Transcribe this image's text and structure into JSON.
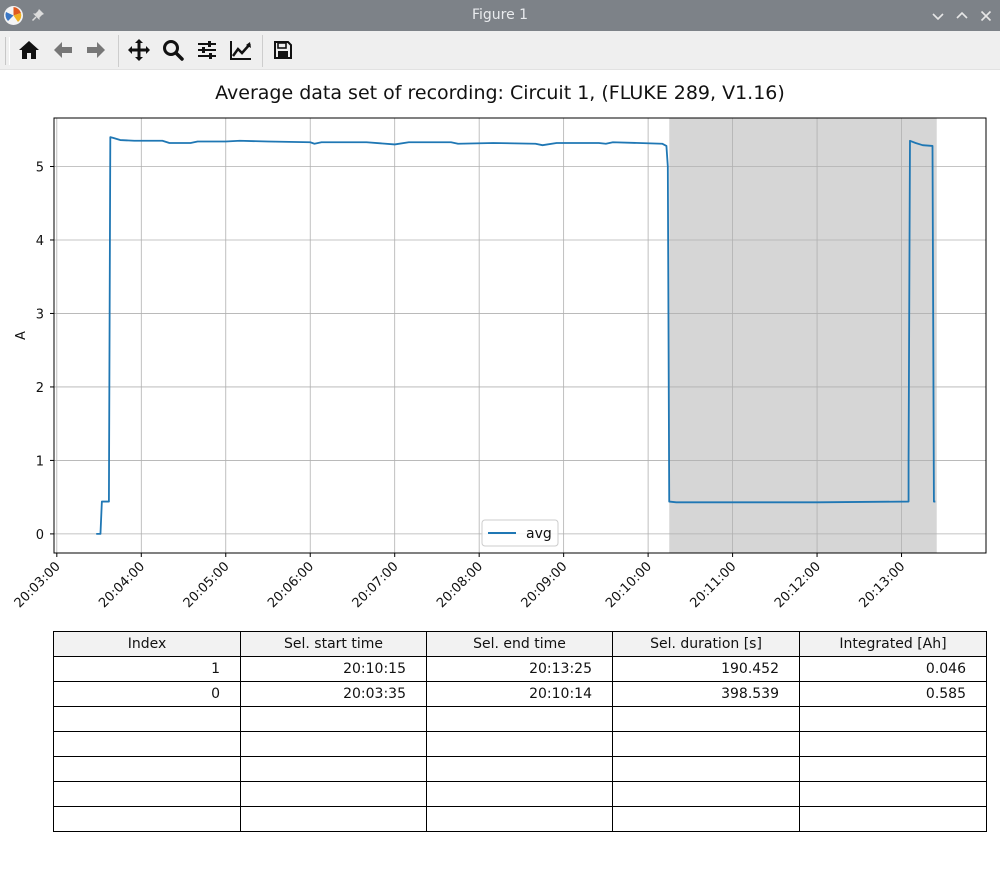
{
  "window": {
    "title": "Figure 1",
    "minimize_icon": "chevron-down-icon",
    "maximize_icon": "chevron-up-icon",
    "close_icon": "close-icon"
  },
  "toolbar": {
    "buttons": [
      "home-icon",
      "back-arrow-icon",
      "forward-arrow-icon",
      "pan-icon",
      "zoom-icon",
      "subplots-config-icon",
      "edit-axes-icon",
      "save-icon"
    ]
  },
  "chart_data": {
    "type": "line",
    "title": "Average data set of recording: Circuit 1, (FLUKE 289,  V1.16)",
    "xlabel": "",
    "ylabel": "A",
    "x_ticks": [
      "20:03:00",
      "20:04:00",
      "20:05:00",
      "20:06:00",
      "20:07:00",
      "20:08:00",
      "20:09:00",
      "20:10:00",
      "20:11:00",
      "20:12:00",
      "20:13:00"
    ],
    "y_ticks": [
      "0",
      "1",
      "2",
      "3",
      "4",
      "5"
    ],
    "xlim": [
      "20:02:58",
      "20:14:00"
    ],
    "ylim": [
      -0.26,
      5.66
    ],
    "grid": true,
    "legend": "bottom-center",
    "highlight_region": [
      "20:10:15",
      "20:13:25"
    ],
    "series": [
      {
        "name": "avg",
        "color": "#1f77b4",
        "points": [
          [
            "20:03:28",
            0.0
          ],
          [
            "20:03:31",
            0.0
          ],
          [
            "20:03:32",
            0.44
          ],
          [
            "20:03:37",
            0.44
          ],
          [
            "20:03:38",
            5.4
          ],
          [
            "20:03:40",
            5.39
          ],
          [
            "20:03:45",
            5.36
          ],
          [
            "20:03:55",
            5.35
          ],
          [
            "20:04:15",
            5.35
          ],
          [
            "20:04:20",
            5.32
          ],
          [
            "20:04:35",
            5.32
          ],
          [
            "20:04:40",
            5.34
          ],
          [
            "20:05:00",
            5.34
          ],
          [
            "20:05:10",
            5.35
          ],
          [
            "20:05:30",
            5.34
          ],
          [
            "20:06:00",
            5.33
          ],
          [
            "20:06:03",
            5.31
          ],
          [
            "20:06:08",
            5.33
          ],
          [
            "20:06:40",
            5.33
          ],
          [
            "20:07:00",
            5.3
          ],
          [
            "20:07:10",
            5.33
          ],
          [
            "20:07:40",
            5.33
          ],
          [
            "20:07:45",
            5.31
          ],
          [
            "20:08:10",
            5.32
          ],
          [
            "20:08:40",
            5.31
          ],
          [
            "20:08:45",
            5.29
          ],
          [
            "20:08:55",
            5.32
          ],
          [
            "20:09:25",
            5.32
          ],
          [
            "20:09:30",
            5.31
          ],
          [
            "20:09:35",
            5.33
          ],
          [
            "20:10:10",
            5.31
          ],
          [
            "20:10:13",
            5.28
          ],
          [
            "20:10:14",
            5.0
          ],
          [
            "20:10:15",
            0.44
          ],
          [
            "20:10:20",
            0.43
          ],
          [
            "20:11:00",
            0.43
          ],
          [
            "20:12:00",
            0.43
          ],
          [
            "20:13:05",
            0.44
          ],
          [
            "20:13:05",
            1.0
          ],
          [
            "20:13:06",
            5.35
          ],
          [
            "20:13:10",
            5.32
          ],
          [
            "20:13:15",
            5.29
          ],
          [
            "20:13:22",
            5.28
          ],
          [
            "20:13:23",
            0.44
          ],
          [
            "20:13:24",
            0.44
          ]
        ]
      }
    ]
  },
  "table": {
    "headers": [
      "Index",
      "Sel. start time",
      "Sel. end time",
      "Sel.  duration [s]",
      "Integrated [Ah]"
    ],
    "rows": [
      [
        "1",
        "20:10:15",
        "20:13:25",
        "190.452",
        "0.046"
      ],
      [
        "0",
        "20:03:35",
        "20:10:14",
        "398.539",
        "0.585"
      ],
      [
        "",
        "",
        "",
        "",
        ""
      ],
      [
        "",
        "",
        "",
        "",
        ""
      ],
      [
        "",
        "",
        "",
        "",
        ""
      ],
      [
        "",
        "",
        "",
        "",
        ""
      ],
      [
        "",
        "",
        "",
        "",
        ""
      ]
    ]
  }
}
